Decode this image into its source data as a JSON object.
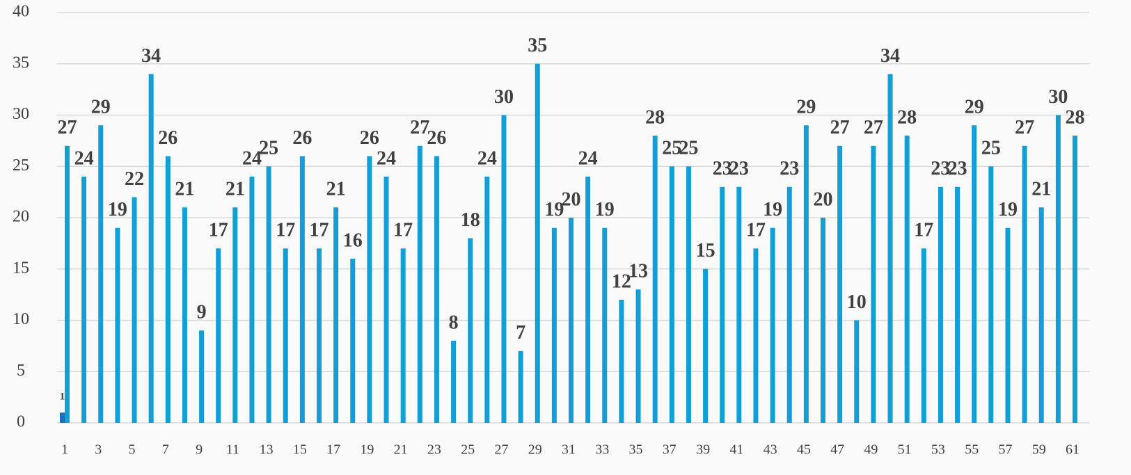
{
  "chart_data": {
    "type": "bar",
    "categories": [
      "1",
      null,
      "3",
      null,
      "5",
      null,
      "7",
      null,
      "9",
      null,
      "11",
      null,
      "13",
      null,
      "15",
      null,
      "17",
      null,
      "19",
      null,
      "21",
      null,
      "23",
      null,
      "25",
      null,
      "27",
      null,
      "29",
      null,
      "31",
      null,
      "33",
      null,
      "35",
      null,
      "37",
      null,
      "39",
      null,
      "41",
      null,
      "43",
      null,
      "45",
      null,
      "47",
      null,
      "49",
      null,
      "51",
      null,
      "53",
      null,
      "55",
      null,
      "57",
      null,
      "59",
      null,
      "61"
    ],
    "series": [
      {
        "color": "#1f6fc0",
        "values": [
          1,
          null,
          null,
          null,
          null,
          null,
          null,
          null,
          null,
          null,
          null,
          null,
          null,
          null,
          null,
          null,
          null,
          null,
          null,
          null,
          null,
          null,
          null,
          null,
          null,
          null,
          null,
          null,
          null,
          null,
          null,
          null,
          null,
          null,
          null,
          null,
          null,
          null,
          null,
          null,
          null,
          null,
          null,
          null,
          null,
          null,
          null,
          null,
          null,
          null,
          null,
          null,
          null,
          null,
          null,
          null,
          null,
          null,
          null,
          null,
          null
        ]
      },
      {
        "color": "#119fd6",
        "values": [
          27,
          24,
          29,
          19,
          22,
          34,
          26,
          21,
          9,
          17,
          21,
          24,
          25,
          17,
          26,
          17,
          21,
          16,
          26,
          24,
          17,
          27,
          26,
          8,
          18,
          24,
          30,
          7,
          35,
          19,
          20,
          24,
          19,
          12,
          13,
          28,
          25,
          25,
          15,
          23,
          23,
          17,
          19,
          23,
          29,
          20,
          27,
          10,
          27,
          34,
          28,
          17,
          23,
          23,
          29,
          25,
          19,
          27,
          21,
          30,
          28
        ]
      }
    ],
    "ylim": [
      0,
      40
    ],
    "yticks": [
      0,
      5,
      10,
      15,
      20,
      25,
      30,
      35,
      40
    ],
    "grid": true,
    "data_labels": true
  }
}
